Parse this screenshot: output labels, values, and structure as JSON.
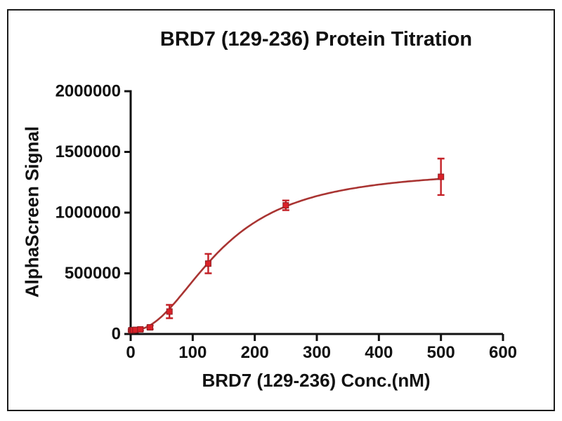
{
  "page": {
    "background_color": "#ffffff",
    "frame_border_color": "#1b1b1b"
  },
  "chart_data": {
    "type": "scatter",
    "title": "BRD7 (129-236) Protein Titration",
    "xlabel": "BRD7 (129-236) Conc.(nM)",
    "ylabel": "AlphaScreen Signal",
    "xlim": [
      0,
      600
    ],
    "ylim": [
      0,
      2000000
    ],
    "x_ticks": [
      0,
      100,
      200,
      300,
      400,
      500,
      600
    ],
    "y_ticks": [
      0,
      500000,
      1000000,
      1500000,
      2000000
    ],
    "x_tick_labels": [
      "0",
      "100",
      "200",
      "300",
      "400",
      "500",
      "600"
    ],
    "y_tick_labels": [
      "0",
      "500000",
      "1000000",
      "1500000",
      "2000000"
    ],
    "grid": false,
    "legend": "none",
    "axis_color": "#111111",
    "series": [
      {
        "name": "BRD7 (129-236)",
        "marker": "square",
        "marker_color": "#da2128",
        "marker_edge_color": "#8d1d22",
        "error_bar_color": "#c42127",
        "line_color": "#a93432",
        "points": [
          {
            "x": 0.98,
            "y": 30000,
            "err": 8000
          },
          {
            "x": 1.95,
            "y": 31000,
            "err": 8000
          },
          {
            "x": 3.91,
            "y": 32000,
            "err": 8000
          },
          {
            "x": 7.81,
            "y": 34000,
            "err": 9000
          },
          {
            "x": 15.63,
            "y": 38000,
            "err": 10000
          },
          {
            "x": 31.25,
            "y": 55000,
            "err": 15000
          },
          {
            "x": 62.5,
            "y": 185000,
            "err": 55000
          },
          {
            "x": 125,
            "y": 580000,
            "err": 80000
          },
          {
            "x": 250,
            "y": 1060000,
            "err": 40000
          },
          {
            "x": 500,
            "y": 1295000,
            "err": 150000
          }
        ],
        "fit_curve": {
          "model": "sigmoidal_dose_response",
          "bottom": 28000,
          "top": 1360000,
          "ec50_nM": 145,
          "hill_slope": 2.2,
          "x_range": [
            0,
            500
          ]
        }
      }
    ]
  }
}
